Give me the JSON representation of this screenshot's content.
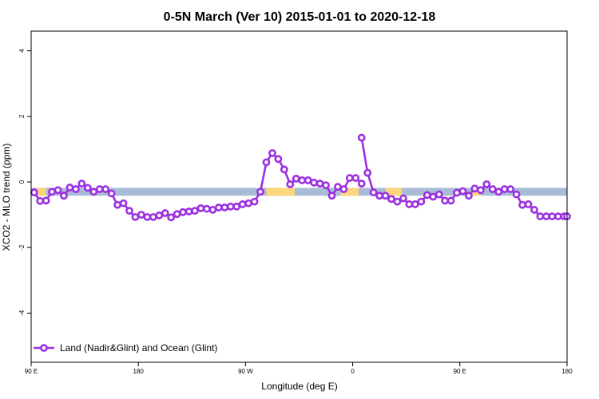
{
  "chart_data": {
    "type": "line",
    "title": "0-5N March (Ver 10)   2015-01-01 to 2020-12-18",
    "xlabel": "Longitude (deg E)",
    "ylabel": "XCO2 - MLO trend (ppm)",
    "xlim": [
      90,
      450
    ],
    "ylim": [
      -5.5,
      4.6
    ],
    "x_ticks": [
      {
        "value": 90,
        "label": "90 E"
      },
      {
        "value": 162,
        "label": "180"
      },
      {
        "value": 234,
        "label": "90 W"
      },
      {
        "value": 306,
        "label": "0"
      },
      {
        "value": 378,
        "label": "90 E"
      },
      {
        "value": 450,
        "label": "180"
      }
    ],
    "y_ticks": [
      {
        "value": -4,
        "label": "-4"
      },
      {
        "value": -2,
        "label": "-2"
      },
      {
        "value": 0,
        "label": "0"
      },
      {
        "value": 2,
        "label": "2"
      },
      {
        "value": 4,
        "label": "4"
      }
    ],
    "surface_band": {
      "y_range": [
        -0.42,
        -0.18
      ],
      "ocean_color": "#a9bcd7",
      "land_color": "#fdd57d",
      "land_segments": [
        [
          94,
          100
        ],
        [
          248,
          267
        ],
        [
          298,
          310
        ],
        [
          328,
          339
        ],
        [
          386,
          392
        ]
      ]
    },
    "series": [
      {
        "name": "Land (Nadir&Glint) and Ocean (Glint)",
        "color": "#9b30e0",
        "segments": [
          {
            "x": [
              92,
              96,
              100,
              104,
              108,
              112,
              116,
              120,
              124,
              128,
              132,
              136,
              140,
              144,
              148,
              152,
              156,
              160,
              164,
              168,
              172,
              176,
              180,
              184,
              188,
              192,
              196,
              200,
              204,
              208,
              212,
              216,
              220,
              224,
              228,
              232,
              236,
              240,
              244,
              248,
              252,
              256,
              260,
              264,
              268,
              272,
              276,
              280,
              284,
              288,
              292,
              296,
              300,
              304,
              308,
              312
            ],
            "y": [
              -0.32,
              -0.58,
              -0.57,
              -0.3,
              -0.25,
              -0.42,
              -0.17,
              -0.22,
              -0.05,
              -0.18,
              -0.3,
              -0.22,
              -0.22,
              -0.35,
              -0.7,
              -0.65,
              -0.88,
              -1.07,
              -1.0,
              -1.07,
              -1.07,
              -1.02,
              -0.95,
              -1.08,
              -0.98,
              -0.92,
              -0.9,
              -0.88,
              -0.8,
              -0.82,
              -0.85,
              -0.78,
              -0.78,
              -0.75,
              -0.75,
              -0.68,
              -0.65,
              -0.6,
              -0.3,
              0.6,
              0.88,
              0.7,
              0.38,
              -0.07,
              0.1,
              0.05,
              0.05,
              -0.02,
              -0.05,
              -0.1,
              -0.42,
              -0.15,
              -0.22,
              0.12,
              0.12,
              -0.05
            ]
          },
          {
            "x": [
              312,
              316,
              320,
              324,
              328,
              332,
              336,
              340,
              344,
              348,
              352,
              356,
              360,
              364,
              368,
              372,
              376,
              380,
              384,
              388,
              392,
              396,
              400,
              404,
              408,
              412,
              416,
              420,
              424,
              428,
              432,
              436,
              440,
              444,
              448,
              450
            ],
            "y": [
              1.35,
              0.28,
              -0.32,
              -0.42,
              -0.42,
              -0.52,
              -0.6,
              -0.5,
              -0.68,
              -0.68,
              -0.6,
              -0.4,
              -0.45,
              -0.38,
              -0.57,
              -0.57,
              -0.33,
              -0.28,
              -0.42,
              -0.2,
              -0.25,
              -0.07,
              -0.22,
              -0.3,
              -0.22,
              -0.22,
              -0.38,
              -0.7,
              -0.68,
              -0.85,
              -1.05,
              -1.05,
              -1.05,
              -1.05,
              -1.05,
              -1.05
            ]
          }
        ]
      }
    ],
    "legend": {
      "position": "bottom-left",
      "label": "Land (Nadir&Glint) and Ocean (Glint)"
    },
    "grid": false
  }
}
